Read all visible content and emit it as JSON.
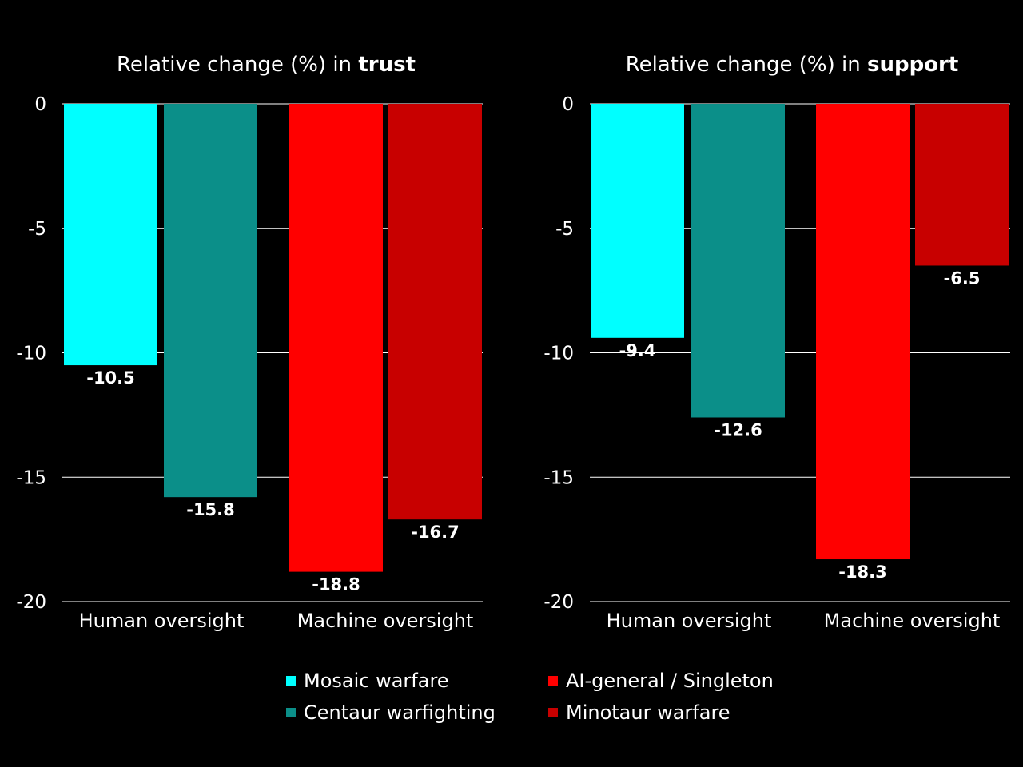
{
  "chart_data": [
    {
      "type": "bar",
      "title_prefix": "Relative change (%) in ",
      "title_bold": "trust",
      "categories": [
        "Human oversight",
        "Machine oversight"
      ],
      "yticks": [
        0,
        -5,
        -10,
        -15,
        -20
      ],
      "ylim": [
        -20,
        0
      ],
      "series": [
        {
          "name": "Mosaic warfare",
          "values": [
            -10.5,
            null
          ]
        },
        {
          "name": "Centaur warfighting",
          "values": [
            -15.8,
            null
          ]
        },
        {
          "name": "AI-general / Singleton",
          "values": [
            null,
            -18.8
          ]
        },
        {
          "name": "Minotaur warfare",
          "values": [
            null,
            -16.7
          ]
        }
      ]
    },
    {
      "type": "bar",
      "title_prefix": "Relative change (%) in ",
      "title_bold": "support",
      "categories": [
        "Human oversight",
        "Machine oversight"
      ],
      "yticks": [
        0,
        -5,
        -10,
        -15,
        -20
      ],
      "ylim": [
        -20,
        0
      ],
      "series": [
        {
          "name": "Mosaic warfare",
          "values": [
            -9.4,
            null
          ]
        },
        {
          "name": "Centaur warfighting",
          "values": [
            -12.6,
            null
          ]
        },
        {
          "name": "AI-general / Singleton",
          "values": [
            null,
            -18.3
          ]
        },
        {
          "name": "Minotaur warfare",
          "values": [
            null,
            -6.5
          ]
        }
      ]
    }
  ],
  "legend": [
    {
      "label": "Mosaic warfare",
      "color": "#00ffff"
    },
    {
      "label": "Centaur warfighting",
      "color": "#0b8f89"
    },
    {
      "label": "AI-general / Singleton",
      "color": "#ff0000"
    },
    {
      "label": "Minotaur warfare",
      "color": "#c80000"
    }
  ]
}
